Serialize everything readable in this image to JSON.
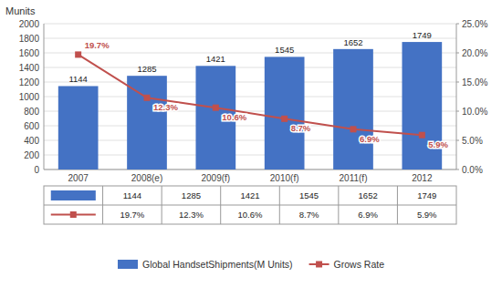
{
  "chart_data": {
    "type": "bar",
    "categories": [
      "2007",
      "2008(e)",
      "2009(f)",
      "2010(f)",
      "2011(f)",
      "2012"
    ],
    "ylabel": "Munits",
    "series": [
      {
        "name": "Global HandsetShipments(M Units)",
        "type": "bar",
        "color": "#4472C4",
        "values": [
          1144,
          1285,
          1421,
          1545,
          1652,
          1749
        ]
      },
      {
        "name": "Grows Rate",
        "type": "line",
        "axis": "y2",
        "color": "#C0504D",
        "marker": "square",
        "values": [
          19.7,
          12.3,
          10.6,
          8.7,
          6.9,
          5.9
        ],
        "value_labels": [
          "19.7%",
          "12.3%",
          "10.6%",
          "8.7%",
          "6.9%",
          "5.9%"
        ]
      }
    ],
    "ylim": [
      0,
      2000
    ],
    "yticks": [
      0,
      200,
      400,
      600,
      800,
      1000,
      1200,
      1400,
      1600,
      1800,
      2000
    ],
    "y2lim": [
      0.0,
      25.0
    ],
    "y2ticks": [
      {
        "value": 0.0,
        "label": "0.0%"
      },
      {
        "value": 5.0,
        "label": "5.0%"
      },
      {
        "value": 10.0,
        "label": "10.0%"
      },
      {
        "value": 15.0,
        "label": "15.0%"
      },
      {
        "value": 20.0,
        "label": "20.0%"
      },
      {
        "value": 25.0,
        "label": "25.0%"
      }
    ],
    "grid": true,
    "data_labels": true,
    "legend": "bottom"
  }
}
